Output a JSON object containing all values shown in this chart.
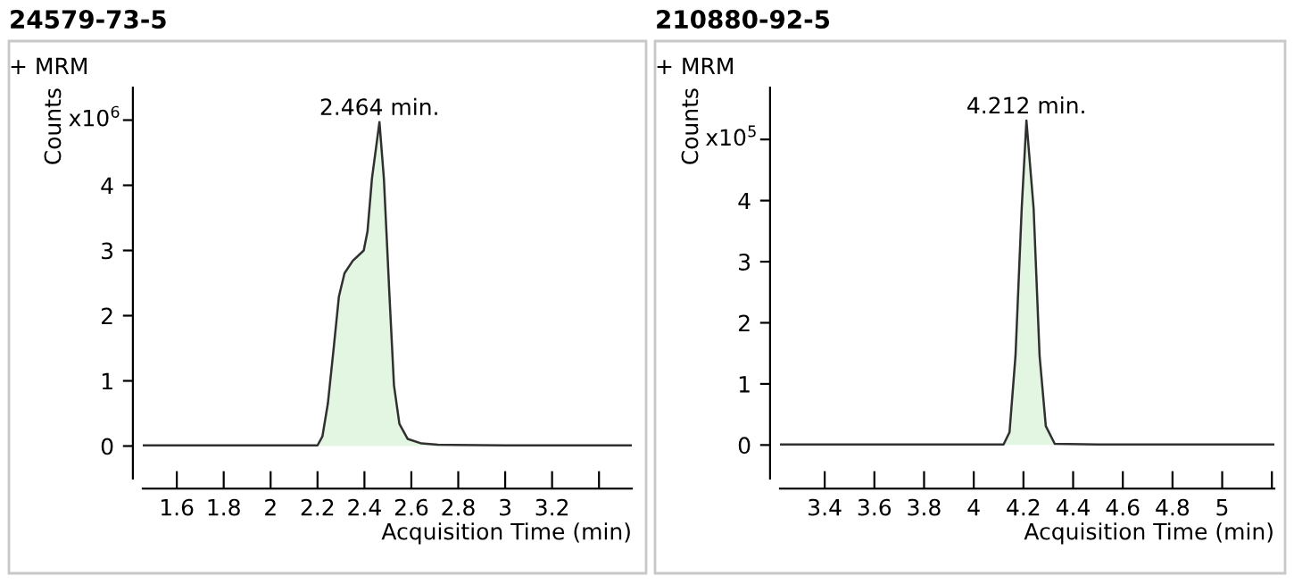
{
  "chart_data": [
    {
      "type": "area",
      "title": "24579-73-5",
      "subtitle": "+ MRM",
      "xlabel": "Acquisition Time (min)",
      "ylabel": "Counts",
      "annotations": [
        "x10$^{6}$",
        {
          "text": "2.464 min.",
          "x": 2.464,
          "y": 4.97
        }
      ],
      "x": [
        1.455,
        2.0,
        2.2,
        2.221,
        2.244,
        2.268,
        2.291,
        2.315,
        2.35,
        2.397,
        2.413,
        2.432,
        2.464,
        2.483,
        2.507,
        2.526,
        2.549,
        2.584,
        2.643,
        2.713,
        3.0,
        3.54
      ],
      "series": [
        {
          "color": "#e2f6e2",
          "values": [
            0.01,
            0.01,
            0.01,
            0.15,
            0.65,
            1.47,
            2.29,
            2.65,
            2.84,
            3.0,
            3.29,
            4.1,
            4.97,
            4.1,
            2.29,
            0.93,
            0.34,
            0.11,
            0.04,
            0.02,
            0.01,
            0.01
          ]
        }
      ],
      "xlim": [
        1.455,
        3.54
      ],
      "xticks": [
        1.6,
        1.8,
        2,
        2.2,
        2.4,
        2.6,
        2.8,
        3,
        3.2,
        {
          "value": 3.4,
          "label": null
        }
      ],
      "ylim": [
        -0.5,
        5.5
      ],
      "yticks": [
        0,
        1,
        2,
        3,
        4,
        {
          "value": 5,
          "label": null
        }
      ],
      "grid": false
    },
    {
      "type": "area",
      "title": "210880-92-5",
      "subtitle": "+ MRM",
      "xlabel": "Acquisition Time (min)",
      "ylabel": "Counts",
      "annotations": [
        "x10$^{5}$",
        {
          "text": "4.212 min.",
          "x": 4.212,
          "y": 5.31
        }
      ],
      "x": [
        3.22,
        4.0,
        4.12,
        4.144,
        4.168,
        4.193,
        4.212,
        4.241,
        4.265,
        4.29,
        4.326,
        4.5,
        5.21
      ],
      "series": [
        {
          "color": "#e2f6e2",
          "values": [
            0.01,
            0.01,
            0.01,
            0.21,
            1.46,
            3.87,
            5.31,
            3.87,
            1.46,
            0.31,
            0.02,
            0.01,
            0.01
          ]
        }
      ],
      "xlim": [
        3.22,
        5.21
      ],
      "xticks": [
        3.4,
        3.6,
        3.8,
        4,
        4.2,
        4.4,
        4.6,
        4.8,
        5,
        {
          "value": 5.2,
          "label": null
        }
      ],
      "ylim": [
        -0.55,
        5.85
      ],
      "yticks": [
        0,
        1,
        2,
        3,
        4,
        {
          "value": 5,
          "label": null
        }
      ],
      "grid": false
    }
  ]
}
